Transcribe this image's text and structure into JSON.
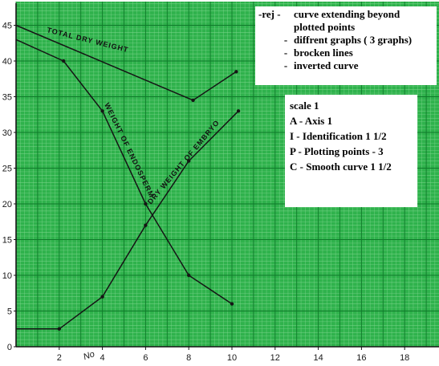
{
  "chart_data": {
    "type": "line",
    "title": "",
    "xlabel": "",
    "ylabel": "",
    "xlim": [
      0,
      20
    ],
    "ylim": [
      0,
      46
    ],
    "grid": true,
    "x_ticks": [
      2,
      4,
      6,
      8,
      10,
      12,
      14,
      16,
      18
    ],
    "y_ticks": [
      0,
      5,
      10,
      15,
      20,
      25,
      30,
      35,
      40,
      45
    ],
    "series": [
      {
        "name": "TOTAL DRY WEIGHT",
        "x": [
          0,
          8.2,
          10.2
        ],
        "y": [
          45,
          34.5,
          38.5
        ],
        "points": [
          [
            0,
            45
          ],
          [
            8.2,
            34.5
          ],
          [
            10.2,
            38.5
          ]
        ]
      },
      {
        "name": "WEIGHT OF ENDOSPERM",
        "x": [
          0,
          2.2,
          4,
          6,
          8,
          10
        ],
        "y": [
          43,
          40,
          33,
          20,
          10,
          6
        ],
        "points": [
          [
            0,
            43
          ],
          [
            2.2,
            40
          ],
          [
            4,
            33
          ],
          [
            6,
            20
          ],
          [
            8,
            10
          ],
          [
            10,
            6
          ]
        ]
      },
      {
        "name": "DRY WEIGHT OF EMBRYO",
        "x": [
          0,
          2,
          4,
          6,
          8,
          10.3
        ],
        "y": [
          2.5,
          2.5,
          7,
          17,
          26,
          33
        ],
        "points": [
          [
            0,
            2.5
          ],
          [
            2,
            2.5
          ],
          [
            4,
            7
          ],
          [
            6,
            17
          ],
          [
            8,
            26
          ],
          [
            10.3,
            33
          ]
        ]
      }
    ],
    "annotations": {
      "x_axis_fragment": "No",
      "rej": {
        "lead": "-rej -",
        "items": [
          "curve extending beyond",
          "plotted points",
          "diffrent graphs ( 3 graphs)",
          "brocken lines",
          "inverted curve"
        ]
      },
      "scale": {
        "title": "scale 1",
        "items": [
          "A - Axis 1",
          "I - Identification 1 1/2",
          "P - Plotting points - 3",
          "C - Smooth curve 1 1/2"
        ]
      }
    }
  },
  "colors": {
    "grid_background": "#2fb24c",
    "grid_minor": "#7fd68f",
    "grid_major": "#0f7a2a",
    "ink": "#151515"
  }
}
